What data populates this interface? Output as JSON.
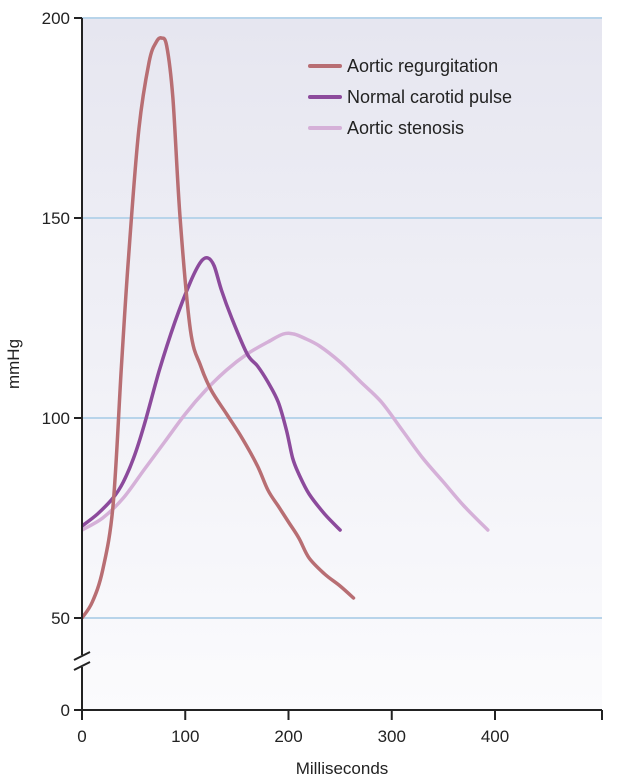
{
  "chart_data": {
    "type": "line",
    "title": "",
    "xlabel": "Milliseconds",
    "ylabel": "mmHg",
    "xlim": [
      0,
      495
    ],
    "ylim": [
      50,
      200
    ],
    "y_axis_break": true,
    "grid": "horizontal",
    "legend_position": "top-right",
    "x_ticks": [
      {
        "value": 0,
        "label": "0"
      },
      {
        "value": 100,
        "label": "100"
      },
      {
        "value": 200,
        "label": "200"
      },
      {
        "value": 300,
        "label": "300"
      },
      {
        "value": 400,
        "label": "400"
      }
    ],
    "y_ticks": [
      {
        "value": 50,
        "label": "50"
      },
      {
        "value": 100,
        "label": "100"
      },
      {
        "value": 150,
        "label": "150"
      },
      {
        "value": 200,
        "label": "200"
      }
    ],
    "y_zero_tick": {
      "value": 0,
      "label": "0"
    },
    "colors": {
      "grid": "#b8d4ea",
      "axis": "#222222",
      "plot_bg_top": "#e6e6f0",
      "plot_bg_bottom": "#fbfbfd"
    },
    "series": [
      {
        "name": "Aortic regurgitation",
        "color": "#b86e73",
        "x": [
          0,
          10,
          20,
          30,
          38,
          45,
          55,
          65,
          72,
          77,
          82,
          88,
          95,
          105,
          115,
          125,
          140,
          155,
          170,
          180,
          190,
          200,
          210,
          220,
          235,
          250,
          263
        ],
        "y": [
          50,
          54,
          62,
          78,
          112,
          140,
          172,
          189,
          194,
          195,
          193,
          180,
          150,
          122,
          113,
          107,
          101,
          95,
          88,
          82,
          78,
          74,
          70,
          65,
          61,
          58,
          55
        ]
      },
      {
        "name": "Normal carotid pulse",
        "color": "#8c4a9c",
        "x": [
          0,
          15,
          30,
          40,
          50,
          60,
          75,
          90,
          105,
          115,
          122,
          128,
          135,
          145,
          160,
          170,
          180,
          190,
          198,
          204,
          210,
          220,
          235,
          250
        ],
        "y": [
          73,
          76,
          80,
          84,
          90,
          98,
          112,
          124,
          134,
          139,
          140,
          138,
          132,
          125,
          116,
          113,
          109,
          104,
          97,
          90,
          86,
          81,
          76,
          72
        ]
      },
      {
        "name": "Aortic stenosis",
        "color": "#d5b0d8",
        "x": [
          0,
          20,
          40,
          60,
          80,
          100,
          120,
          140,
          160,
          180,
          195,
          205,
          215,
          230,
          250,
          270,
          290,
          310,
          330,
          350,
          370,
          393
        ],
        "y": [
          72,
          75,
          80,
          87,
          94,
          101,
          107,
          112,
          116,
          119,
          121,
          121,
          120,
          118,
          114,
          109,
          104,
          97,
          90,
          84,
          78,
          72
        ]
      }
    ]
  }
}
